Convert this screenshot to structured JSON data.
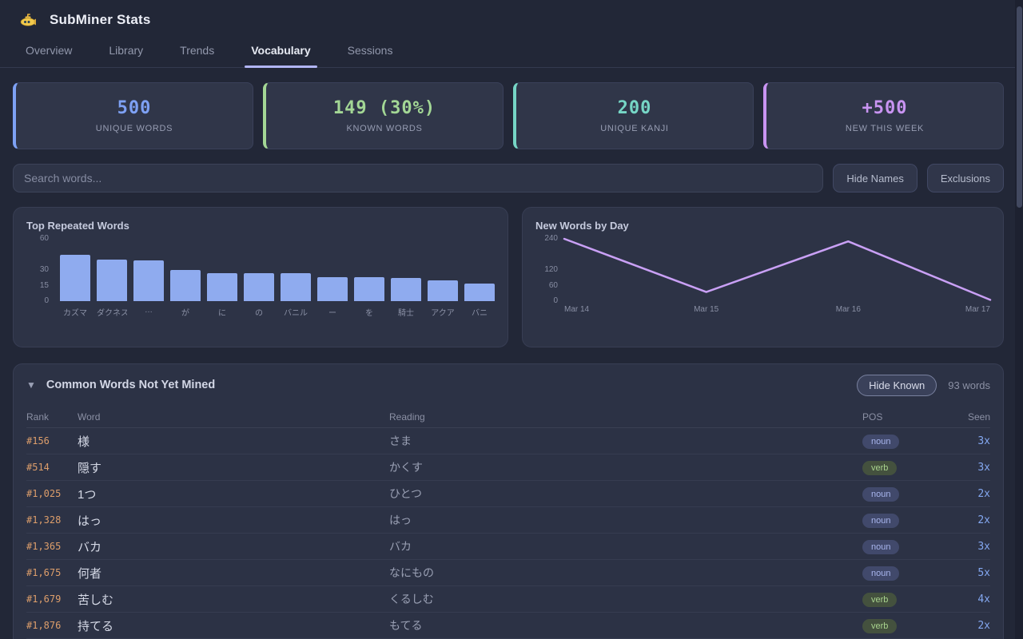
{
  "app": {
    "title": "SubMiner Stats",
    "logo": "submarine-icon"
  },
  "tabs": [
    {
      "label": "Overview",
      "active": false
    },
    {
      "label": "Library",
      "active": false
    },
    {
      "label": "Trends",
      "active": false
    },
    {
      "label": "Vocabulary",
      "active": true
    },
    {
      "label": "Sessions",
      "active": false
    }
  ],
  "stats": [
    {
      "value": "500",
      "label": "UNIQUE WORDS",
      "accent": "#7ea1f4"
    },
    {
      "value": "149 (30%)",
      "label": "KNOWN WORDS",
      "accent": "#a3d795"
    },
    {
      "value": "200",
      "label": "UNIQUE KANJI",
      "accent": "#76d6c6"
    },
    {
      "value": "+500",
      "label": "NEW THIS WEEK",
      "accent": "#c994f2"
    }
  ],
  "toolbar": {
    "search_placeholder": "Search words...",
    "hide_names_label": "Hide Names",
    "exclusions_label": "Exclusions"
  },
  "chart_data": [
    {
      "type": "bar",
      "title": "Top Repeated Words",
      "categories": [
        "カズマ",
        "ダクネス",
        "…",
        "が",
        "に",
        "の",
        "バニル",
        "ー",
        "を",
        "騎士",
        "アクア",
        "バニ"
      ],
      "values": [
        45,
        40,
        39,
        30,
        27,
        27,
        27,
        23,
        23,
        22,
        20,
        17
      ],
      "yticks": [
        60,
        30,
        15,
        0
      ],
      "ylim": [
        0,
        60
      ],
      "bar_color": "#8fabef",
      "grid": false,
      "legend": "none"
    },
    {
      "type": "line",
      "title": "New Words by Day",
      "x": [
        "Mar 14",
        "Mar 15",
        "Mar 16",
        "Mar 17"
      ],
      "values": [
        240,
        35,
        230,
        5
      ],
      "yticks": [
        240,
        120,
        60,
        0
      ],
      "ylim": [
        0,
        240
      ],
      "line_color": "#c9a0f5",
      "grid": false,
      "legend": "none"
    }
  ],
  "table": {
    "collapse_icon": "▼",
    "title": "Common Words Not Yet Mined",
    "hide_known_label": "Hide Known",
    "count_label": "93 words",
    "columns": [
      "Rank",
      "Word",
      "Reading",
      "POS",
      "Seen"
    ],
    "rows": [
      {
        "rank": "#156",
        "word": "様",
        "reading": "さま",
        "pos": "noun",
        "seen": "3x"
      },
      {
        "rank": "#514",
        "word": "隠す",
        "reading": "かくす",
        "pos": "verb",
        "seen": "3x"
      },
      {
        "rank": "#1,025",
        "word": "1つ",
        "reading": "ひとつ",
        "pos": "noun",
        "seen": "2x"
      },
      {
        "rank": "#1,328",
        "word": "はっ",
        "reading": "はっ",
        "pos": "noun",
        "seen": "2x"
      },
      {
        "rank": "#1,365",
        "word": "バカ",
        "reading": "バカ",
        "pos": "noun",
        "seen": "3x"
      },
      {
        "rank": "#1,675",
        "word": "何者",
        "reading": "なにもの",
        "pos": "noun",
        "seen": "5x"
      },
      {
        "rank": "#1,679",
        "word": "苦しむ",
        "reading": "くるしむ",
        "pos": "verb",
        "seen": "4x"
      },
      {
        "rank": "#1,876",
        "word": "持てる",
        "reading": "もてる",
        "pos": "verb",
        "seen": "2x"
      }
    ]
  },
  "badge_colors": {
    "noun": {
      "bg": "#41496b",
      "text": "#a9b6ee"
    },
    "verb": {
      "bg": "#44513e",
      "text": "#a9d48e"
    }
  }
}
